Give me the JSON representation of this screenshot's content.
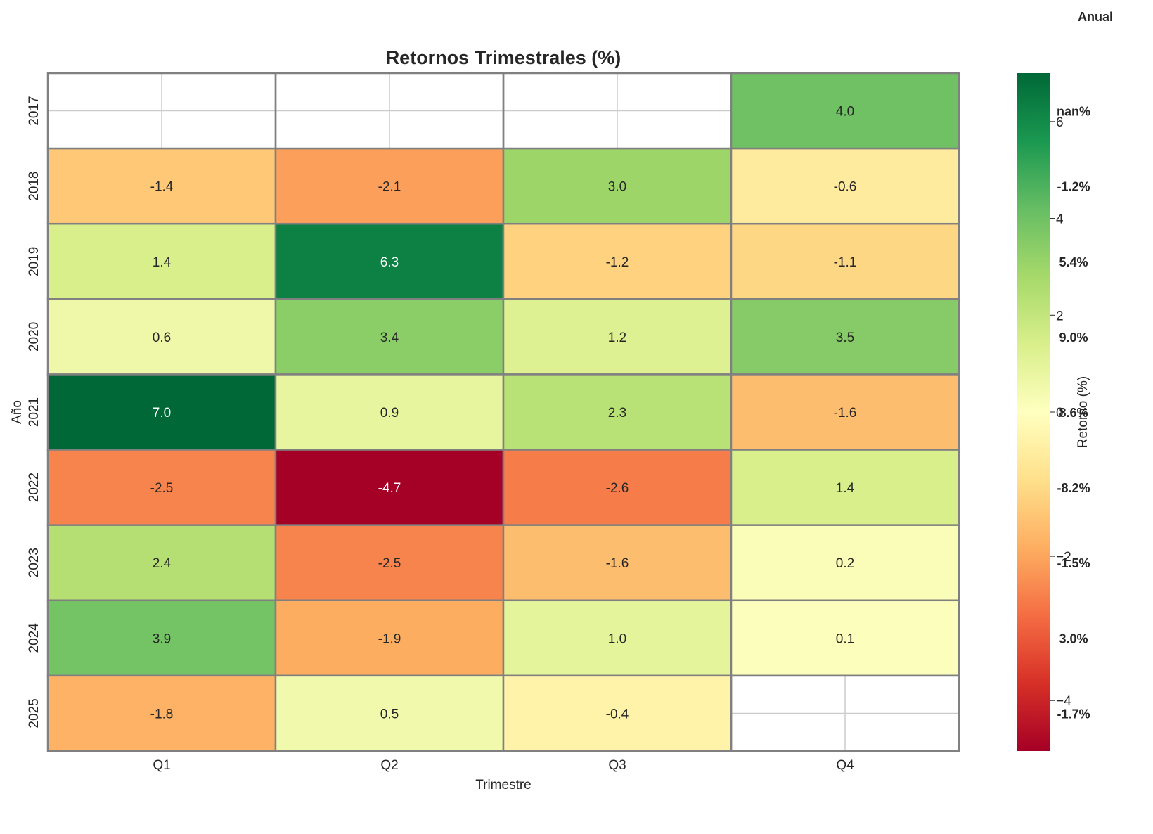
{
  "chart_data": {
    "type": "heatmap",
    "title": "Retornos Trimestrales (%)",
    "xlabel": "Trimestre",
    "ylabel": "Año",
    "x_categories": [
      "Q1",
      "Q2",
      "Q3",
      "Q4"
    ],
    "y_categories": [
      "2017",
      "2018",
      "2019",
      "2020",
      "2021",
      "2022",
      "2023",
      "2024",
      "2025"
    ],
    "values": [
      [
        null,
        null,
        null,
        4.0
      ],
      [
        -1.4,
        -2.1,
        3.0,
        -0.6
      ],
      [
        1.4,
        6.3,
        -1.2,
        -1.1
      ],
      [
        0.6,
        3.4,
        1.2,
        3.5
      ],
      [
        7.0,
        0.9,
        2.3,
        -1.6
      ],
      [
        -2.5,
        -4.7,
        -2.6,
        1.4
      ],
      [
        2.4,
        -2.5,
        -1.6,
        0.2
      ],
      [
        3.9,
        -1.9,
        1.0,
        0.1
      ],
      [
        -1.8,
        0.5,
        -0.4,
        null
      ]
    ],
    "cell_labels": [
      [
        "",
        "",
        "",
        "4.0"
      ],
      [
        "-1.4",
        "-2.1",
        "3.0",
        "-0.6"
      ],
      [
        "1.4",
        "6.3",
        "-1.2",
        "-1.1"
      ],
      [
        "0.6",
        "3.4",
        "1.2",
        "3.5"
      ],
      [
        "7.0",
        "0.9",
        "2.3",
        "-1.6"
      ],
      [
        "-2.5",
        "-4.7",
        "-2.6",
        "1.4"
      ],
      [
        "2.4",
        "-2.5",
        "-1.6",
        "0.2"
      ],
      [
        "3.9",
        "-1.9",
        "1.0",
        "0.1"
      ],
      [
        "-1.8",
        "0.5",
        "-0.4",
        ""
      ]
    ],
    "colormap": "RdYlGn",
    "value_range": [
      -4.7,
      7.0
    ],
    "colorbar": {
      "label": "Retorno (%)",
      "ticks": [
        6,
        4,
        2,
        0,
        -2,
        -4
      ],
      "tick_labels": [
        "6",
        "4",
        "2",
        "0",
        "−2",
        "−4"
      ]
    },
    "annual": {
      "header": "Anual",
      "labels": [
        "nan%",
        "-1.2%",
        "5.4%",
        "9.0%",
        "8.6%",
        "-8.2%",
        "-1.5%",
        "3.0%",
        "-1.7%"
      ]
    },
    "grid": true
  }
}
